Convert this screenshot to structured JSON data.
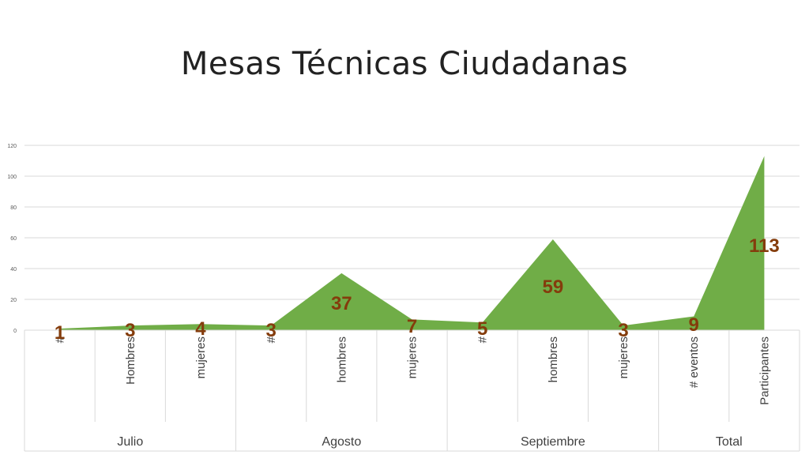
{
  "title": "Mesas Técnicas Ciudadanas",
  "chart_data": {
    "type": "area",
    "color": "#70AD47",
    "label_color": "#843C0C",
    "ylim": [
      0,
      120
    ],
    "y_ticks": [
      0,
      20,
      40,
      60,
      80,
      100,
      120
    ],
    "grid": true,
    "categories": [
      "#",
      "Hombres",
      "mujeres",
      "#",
      "hombres",
      "mujeres",
      "#",
      "hombres",
      "mujeres",
      "# eventos",
      "Participantes"
    ],
    "groups": [
      {
        "label": "Julio",
        "count": 3
      },
      {
        "label": "Agosto",
        "count": 3
      },
      {
        "label": "Septiembre",
        "count": 3
      },
      {
        "label": "Total",
        "count": 2
      }
    ],
    "values": [
      1,
      3,
      4,
      3,
      37,
      7,
      5,
      59,
      3,
      9,
      113
    ]
  }
}
